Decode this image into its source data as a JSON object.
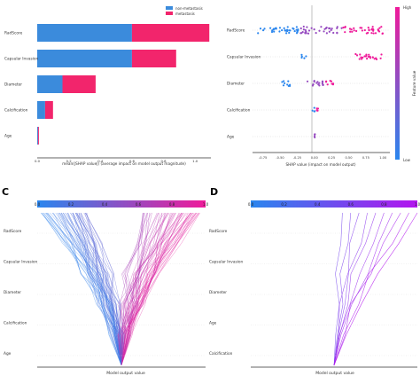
{
  "figure": {
    "panel_labels": [
      "C",
      "D"
    ]
  },
  "colors": {
    "non_metastasis": "#3b8bdc",
    "metastasis": "#f2256c",
    "low": "#2a86ee",
    "high": "#ef1a9a",
    "purple_high": "#b314ee"
  },
  "chart_data": [
    {
      "id": "A",
      "type": "bar",
      "orientation": "horizontal",
      "stacked": true,
      "categories": [
        "RadScore",
        "Capsular Invasion",
        "Diameter",
        "Calcification",
        "Age"
      ],
      "series": [
        {
          "name": "non-metastasis",
          "values": [
            0.6,
            0.6,
            0.16,
            0.05,
            0.005
          ]
        },
        {
          "name": "metastasis",
          "values": [
            0.49,
            0.28,
            0.21,
            0.05,
            0.005
          ]
        }
      ],
      "xlabel": "mean(|SHAP value|) (average impact on model output magnitude)",
      "xticks": [
        "0.0",
        "0.2",
        "0.4",
        "0.6",
        "0.8",
        "1.0"
      ],
      "xlim": [
        0,
        1.1
      ],
      "legend": "top-right"
    },
    {
      "id": "B",
      "type": "scatter",
      "subtype": "beeswarm",
      "categories": [
        "RadScore",
        "Capsular Invasion",
        "Diameter",
        "Calcification",
        "Age"
      ],
      "xlabel": "SHAP value (impact on model output)",
      "xticks": [
        "-0.75",
        "-0.50",
        "-0.25",
        "0.00",
        "0.25",
        "0.50",
        "0.75",
        "1.00"
      ],
      "xlim": [
        -0.9,
        1.1
      ],
      "colorbar": {
        "label": "Feature value",
        "high": "High",
        "low": "Low"
      },
      "rows": [
        {
          "feature": "RadScore",
          "ranges": [
            {
              "from": -0.82,
              "to": -0.2,
              "value": "low"
            },
            {
              "from": -0.2,
              "to": 0.4,
              "value": "mid"
            },
            {
              "from": 0.4,
              "to": 1.0,
              "value": "high"
            }
          ]
        },
        {
          "feature": "Capsular Invasion",
          "ranges": [
            {
              "from": -0.2,
              "to": -0.12,
              "value": "low"
            },
            {
              "from": 0.6,
              "to": 0.98,
              "value": "high"
            }
          ]
        },
        {
          "feature": "Diameter",
          "ranges": [
            {
              "from": -0.5,
              "to": -0.35,
              "value": "low"
            },
            {
              "from": -0.1,
              "to": 0.15,
              "value": "mid"
            },
            {
              "from": 0.15,
              "to": 0.28,
              "value": "high"
            }
          ]
        },
        {
          "feature": "Calcification",
          "ranges": [
            {
              "from": -0.03,
              "to": 0.02,
              "value": "low"
            },
            {
              "from": 0.03,
              "to": 0.06,
              "value": "high"
            }
          ]
        },
        {
          "feature": "Age",
          "ranges": [
            {
              "from": -0.01,
              "to": 0.01,
              "value": "mid"
            }
          ]
        }
      ]
    },
    {
      "id": "C",
      "type": "line",
      "subtype": "decision plot",
      "features": [
        "RadScore",
        "Capsular Invasion",
        "Diameter",
        "Calcification",
        "Age"
      ],
      "xlabel": "Model output value",
      "xticks": [
        "0.0",
        "0.2",
        "0.4",
        "0.6",
        "0.8",
        "1.0"
      ],
      "xlim": [
        0,
        1
      ],
      "base_value": 0.5
    },
    {
      "id": "D",
      "type": "line",
      "subtype": "decision plot",
      "features": [
        "RadScore",
        "Capsular Invasion",
        "Diameter",
        "Age",
        "Calcification"
      ],
      "xlabel": "Model output value",
      "xticks": [
        "0.0",
        "0.2",
        "0.4",
        "0.6",
        "0.8",
        "1.0"
      ],
      "xlim": [
        0,
        1
      ],
      "base_value": 0.5
    }
  ]
}
